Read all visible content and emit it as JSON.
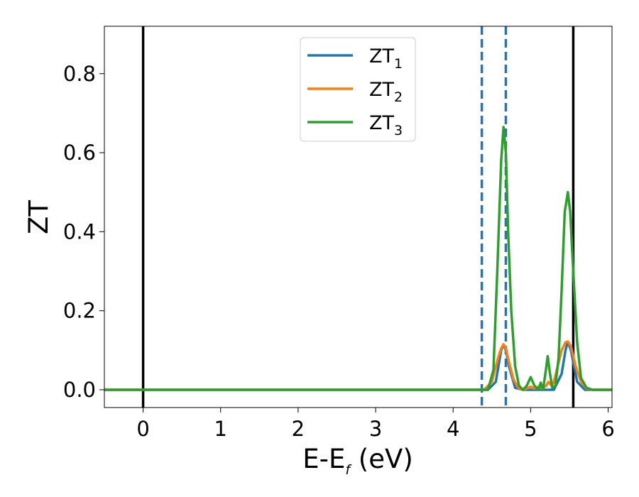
{
  "chart_data": {
    "type": "line",
    "title": "",
    "xlabel": {
      "main": "E-E",
      "sub": "f",
      "suffix": " (eV)"
    },
    "ylabel": "ZT",
    "xlim": [
      -0.5,
      6.05
    ],
    "ylim": [
      -0.045,
      0.92
    ],
    "xticks": [
      0,
      1,
      2,
      3,
      4,
      5,
      6
    ],
    "xtick_labels": [
      "0",
      "1",
      "2",
      "3",
      "4",
      "5",
      "6"
    ],
    "yticks": [
      0.0,
      0.2,
      0.4,
      0.6,
      0.8
    ],
    "ytick_labels": [
      "0.0",
      "0.2",
      "0.4",
      "0.6",
      "0.8"
    ],
    "grid": false,
    "legend_position": "top-center",
    "vertical_lines": [
      {
        "x": 0.0,
        "style": "solid",
        "color": "#000000"
      },
      {
        "x": 5.55,
        "style": "solid",
        "color": "#000000"
      },
      {
        "x": 4.37,
        "style": "dashed",
        "color": "#1f77b4"
      },
      {
        "x": 4.68,
        "style": "dashed",
        "color": "#1f77b4"
      }
    ],
    "series": [
      {
        "name": {
          "main": "ZT",
          "sub": "1"
        },
        "color": "#1f77b4",
        "x": [
          -0.5,
          4.3,
          4.45,
          4.55,
          4.62,
          4.65,
          4.68,
          4.72,
          4.8,
          4.9,
          5.3,
          5.4,
          5.45,
          5.48,
          5.52,
          5.6,
          5.7,
          6.05
        ],
        "y": [
          0,
          0,
          0,
          0.02,
          0.1,
          0.115,
          0.1,
          0.06,
          0.005,
          0,
          0,
          0.04,
          0.1,
          0.122,
          0.1,
          0.02,
          0,
          0
        ]
      },
      {
        "name": {
          "main": "ZT",
          "sub": "2"
        },
        "color": "#ff7f0e",
        "x": [
          -0.5,
          4.3,
          4.4,
          4.5,
          4.58,
          4.62,
          4.65,
          4.68,
          4.72,
          4.78,
          4.85,
          4.9,
          4.95,
          5.0,
          5.05,
          5.1,
          5.15,
          5.2,
          5.23,
          5.27,
          5.3,
          5.35,
          5.4,
          5.45,
          5.48,
          5.52,
          5.58,
          5.65,
          5.72,
          5.8,
          6.05
        ],
        "y": [
          0,
          0,
          0,
          0.02,
          0.08,
          0.105,
          0.115,
          0.105,
          0.07,
          0.025,
          0.003,
          0,
          0.003,
          0.008,
          0.003,
          0.008,
          0.003,
          0.01,
          0.02,
          0.01,
          0.02,
          0.06,
          0.1,
          0.12,
          0.122,
          0.11,
          0.06,
          0.02,
          0.003,
          0,
          0
        ]
      },
      {
        "name": {
          "main": "ZT",
          "sub": "3"
        },
        "color": "#2ca02c",
        "x": [
          -0.5,
          4.35,
          4.45,
          4.52,
          4.57,
          4.62,
          4.65,
          4.68,
          4.71,
          4.75,
          4.8,
          4.85,
          4.9,
          4.95,
          5.0,
          5.05,
          5.1,
          5.13,
          5.16,
          5.19,
          5.22,
          5.25,
          5.28,
          5.32,
          5.36,
          5.4,
          5.44,
          5.48,
          5.51,
          5.55,
          5.6,
          5.65,
          5.72,
          5.8,
          6.05
        ],
        "y": [
          0,
          0,
          0,
          0.05,
          0.3,
          0.58,
          0.665,
          0.6,
          0.4,
          0.2,
          0.06,
          0.01,
          0.0,
          0.01,
          0.032,
          0.01,
          0.0,
          0.018,
          0.0,
          0.04,
          0.085,
          0.04,
          0.005,
          0.01,
          0.08,
          0.25,
          0.45,
          0.5,
          0.45,
          0.3,
          0.12,
          0.03,
          0.005,
          0,
          0
        ]
      }
    ]
  }
}
